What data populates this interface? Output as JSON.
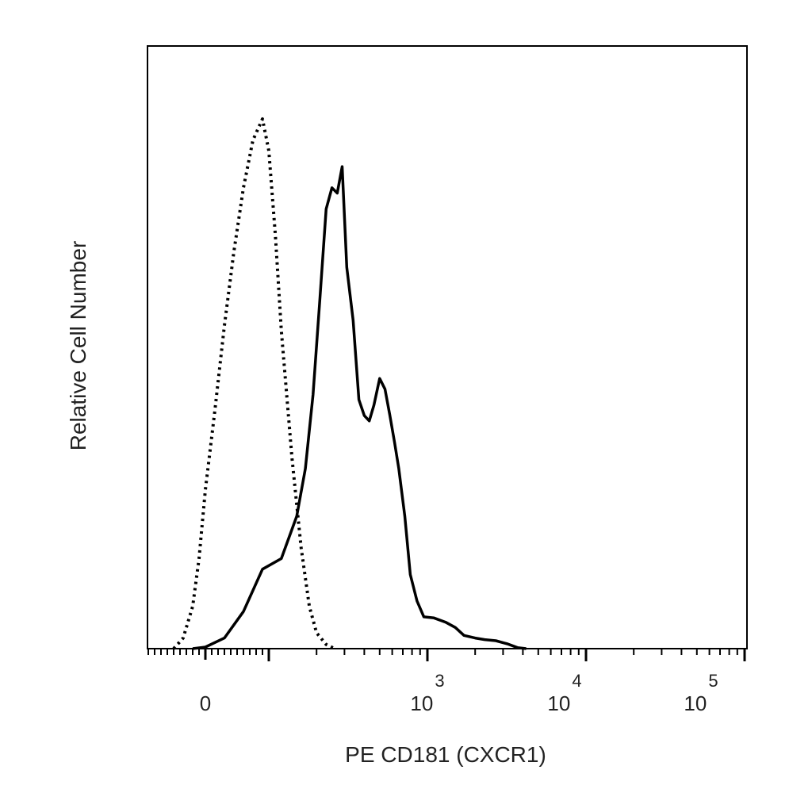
{
  "chart_data": {
    "type": "line",
    "title": "",
    "xlabel": "PE CD181 (CXCR1)",
    "ylabel": "Relative Cell Number",
    "x_scale": "biexponential",
    "x_tick_labels": [
      {
        "base": "0",
        "exp": ""
      },
      {
        "base": "10",
        "exp": "3"
      },
      {
        "base": "10",
        "exp": "4"
      },
      {
        "base": "10",
        "exp": "5"
      }
    ],
    "y_tick_labels": [],
    "ylim": [
      0,
      1
    ],
    "grid": false,
    "legend": "none",
    "colors": {
      "stroke": "#000000",
      "frame": "#000000",
      "text": "#222222"
    },
    "series": [
      {
        "style": "dotted",
        "x": [
          -50,
          -35,
          -20,
          -10,
          0,
          15,
          30,
          45,
          60,
          75,
          90,
          100,
          110,
          120,
          140,
          160,
          180,
          200,
          230,
          260
        ],
        "y": [
          0.0,
          0.02,
          0.08,
          0.17,
          0.3,
          0.45,
          0.61,
          0.75,
          0.87,
          0.96,
          1.0,
          0.94,
          0.78,
          0.6,
          0.36,
          0.19,
          0.08,
          0.03,
          0.008,
          0.0
        ]
      },
      {
        "style": "solid",
        "x": [
          -20,
          0,
          30,
          60,
          90,
          120,
          150,
          170,
          190,
          210,
          230,
          250,
          270,
          290,
          310,
          340,
          370,
          400,
          430,
          460,
          500,
          540,
          580,
          620,
          660,
          720,
          780,
          860,
          950,
          1100,
          1300,
          1500,
          1700,
          2000,
          2300,
          2700,
          3200,
          3700,
          4200
        ],
        "y": [
          0.0,
          0.003,
          0.02,
          0.07,
          0.15,
          0.17,
          0.25,
          0.34,
          0.48,
          0.66,
          0.83,
          0.87,
          0.86,
          0.91,
          0.72,
          0.62,
          0.47,
          0.44,
          0.43,
          0.46,
          0.51,
          0.49,
          0.44,
          0.39,
          0.34,
          0.25,
          0.14,
          0.09,
          0.06,
          0.058,
          0.05,
          0.04,
          0.025,
          0.02,
          0.017,
          0.015,
          0.009,
          0.002,
          0.0
        ]
      }
    ]
  }
}
